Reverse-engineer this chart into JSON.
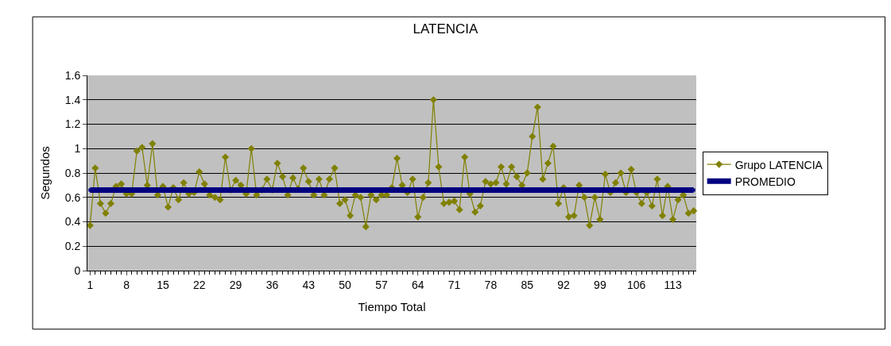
{
  "chart_data": {
    "type": "line",
    "title": "LATENCIA",
    "xlabel": "Tiempo Total",
    "ylabel": "Segundos",
    "categories": [
      "1",
      null,
      null,
      null,
      null,
      null,
      null,
      "8",
      null,
      null,
      null,
      null,
      null,
      null,
      "15",
      null,
      null,
      null,
      null,
      null,
      null,
      "22",
      null,
      null,
      null,
      null,
      null,
      null,
      "29",
      null,
      null,
      null,
      null,
      null,
      null,
      "36",
      null,
      null,
      null,
      null,
      null,
      null,
      "43",
      null,
      null,
      null,
      null,
      null,
      null,
      "50",
      null,
      null,
      null,
      null,
      null,
      null,
      "57",
      null,
      null,
      null,
      null,
      null,
      null,
      "64",
      null,
      null,
      null,
      null,
      null,
      null,
      "71",
      null,
      null,
      null,
      null,
      null,
      null,
      "78",
      null,
      null,
      null,
      null,
      null,
      null,
      "85",
      null,
      null,
      null,
      null,
      null,
      null,
      "92",
      null,
      null,
      null,
      null,
      null,
      null,
      "99",
      null,
      null,
      null,
      null,
      null,
      null,
      "106",
      null,
      null,
      null,
      null,
      null,
      null,
      "113",
      null,
      null,
      null,
      null
    ],
    "series": [
      {
        "name": "Grupo LATENCIA",
        "color": "#808000",
        "marker": "diamond",
        "values": [
          0.37,
          0.84,
          0.55,
          0.47,
          0.55,
          0.69,
          0.71,
          0.63,
          0.63,
          0.98,
          1.01,
          0.7,
          1.04,
          0.62,
          0.69,
          0.52,
          0.68,
          0.58,
          0.72,
          0.63,
          0.64,
          0.81,
          0.71,
          0.62,
          0.6,
          0.58,
          0.93,
          0.66,
          0.74,
          0.7,
          0.63,
          1.0,
          0.62,
          0.66,
          0.75,
          0.66,
          0.88,
          0.77,
          0.62,
          0.76,
          0.67,
          0.84,
          0.73,
          0.62,
          0.75,
          0.62,
          0.75,
          0.84,
          0.55,
          0.58,
          0.45,
          0.62,
          0.6,
          0.36,
          0.62,
          0.58,
          0.62,
          0.62,
          0.68,
          0.92,
          0.7,
          0.64,
          0.75,
          0.44,
          0.6,
          0.72,
          1.4,
          0.85,
          0.55,
          0.56,
          0.57,
          0.5,
          0.93,
          0.63,
          0.48,
          0.53,
          0.73,
          0.71,
          0.72,
          0.85,
          0.71,
          0.85,
          0.77,
          0.7,
          0.8,
          1.1,
          1.34,
          0.75,
          0.88,
          1.02,
          0.55,
          0.68,
          0.44,
          0.45,
          0.7,
          0.6,
          0.37,
          0.6,
          0.42,
          0.79,
          0.64,
          0.72,
          0.8,
          0.64,
          0.83,
          0.64,
          0.55,
          0.64,
          0.53,
          0.75,
          0.45,
          0.69,
          0.42,
          0.58,
          0.62,
          0.47,
          0.49
        ]
      },
      {
        "name": "PROMEDIO",
        "color": "#000080",
        "marker": "square",
        "values": [
          0.66,
          0.66,
          0.66,
          0.66,
          0.66,
          0.66,
          0.66,
          0.66,
          0.66,
          0.66,
          0.66,
          0.66,
          0.66,
          0.66,
          0.66,
          0.66,
          0.66,
          0.66,
          0.66,
          0.66,
          0.66,
          0.66,
          0.66,
          0.66,
          0.66,
          0.66,
          0.66,
          0.66,
          0.66,
          0.66,
          0.66,
          0.66,
          0.66,
          0.66,
          0.66,
          0.66,
          0.66,
          0.66,
          0.66,
          0.66,
          0.66,
          0.66,
          0.66,
          0.66,
          0.66,
          0.66,
          0.66,
          0.66,
          0.66,
          0.66,
          0.66,
          0.66,
          0.66,
          0.66,
          0.66,
          0.66,
          0.66,
          0.66,
          0.66,
          0.66,
          0.66,
          0.66,
          0.66,
          0.66,
          0.66,
          0.66,
          0.66,
          0.66,
          0.66,
          0.66,
          0.66,
          0.66,
          0.66,
          0.66,
          0.66,
          0.66,
          0.66,
          0.66,
          0.66,
          0.66,
          0.66,
          0.66,
          0.66,
          0.66,
          0.66,
          0.66,
          0.66,
          0.66,
          0.66,
          0.66,
          0.66,
          0.66,
          0.66,
          0.66,
          0.66,
          0.66,
          0.66,
          0.66,
          0.66,
          0.66,
          0.66,
          0.66,
          0.66,
          0.66,
          0.66,
          0.66,
          0.66,
          0.66,
          0.66,
          0.66,
          0.66,
          0.66,
          0.66,
          0.66,
          0.66,
          0.66,
          0.66
        ]
      }
    ],
    "ylim": [
      0,
      1.6
    ],
    "yticks": [
      0,
      0.2,
      0.4,
      0.6,
      0.8,
      1,
      1.2,
      1.4,
      1.6
    ],
    "grid": "y",
    "legend": "right",
    "line_style": "solid"
  }
}
